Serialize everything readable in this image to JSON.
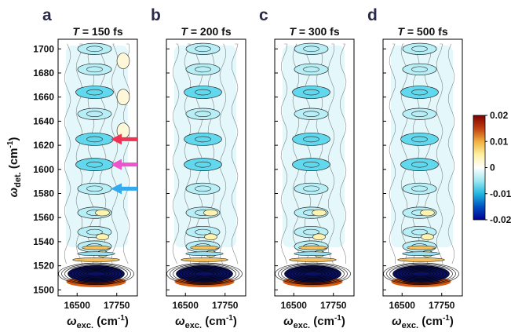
{
  "chart_data": {
    "type": "heatmap",
    "panel_count": 4,
    "panels": [
      {
        "letter": "a",
        "title_prefix": "T",
        "title_value": "= 150 fs",
        "arrows": [
          {
            "y": 1625,
            "color": "#ee3355"
          },
          {
            "y": 1604,
            "color": "#ee55cc"
          },
          {
            "y": 1584,
            "color": "#33aaee"
          }
        ]
      },
      {
        "letter": "b",
        "title_prefix": "T",
        "title_value": "= 200 fs",
        "arrows": []
      },
      {
        "letter": "c",
        "title_prefix": "T",
        "title_value": "= 300 fs",
        "arrows": []
      },
      {
        "letter": "d",
        "title_prefix": "T",
        "title_value": "= 500 fs",
        "arrows": []
      }
    ],
    "x_ticks": [
      {
        "value": 16500,
        "label": "16500"
      },
      {
        "value": 17750,
        "label": "17750"
      }
    ],
    "xlim": [
      15900,
      18400
    ],
    "y_ticks": [
      1500,
      1520,
      1540,
      1560,
      1580,
      1600,
      1620,
      1640,
      1660,
      1680,
      1700
    ],
    "ylim": [
      1495,
      1708
    ],
    "xlabel": {
      "main": "ω",
      "sub": "exc.",
      "unit": " (cm",
      "exp": "-1",
      "close": ")"
    },
    "ylabel": {
      "main": "ω",
      "sub": "det.",
      "unit": " (cm",
      "exp": "-1",
      "close": ")"
    },
    "colorbar": {
      "range": [
        -0.02,
        0.02
      ],
      "ticks": [
        "0.02",
        "0.01",
        "0",
        "-0.01",
        "-0.02"
      ],
      "stops": [
        "#000090",
        "#0050c0",
        "#20b8e0",
        "#a0e8f0",
        "#ffffff",
        "#fff0a0",
        "#f0b040",
        "#c04010",
        "#800000"
      ]
    },
    "colors": {
      "negative": "#0a1060",
      "positive": "#8a2000",
      "contour": "#000000"
    }
  }
}
